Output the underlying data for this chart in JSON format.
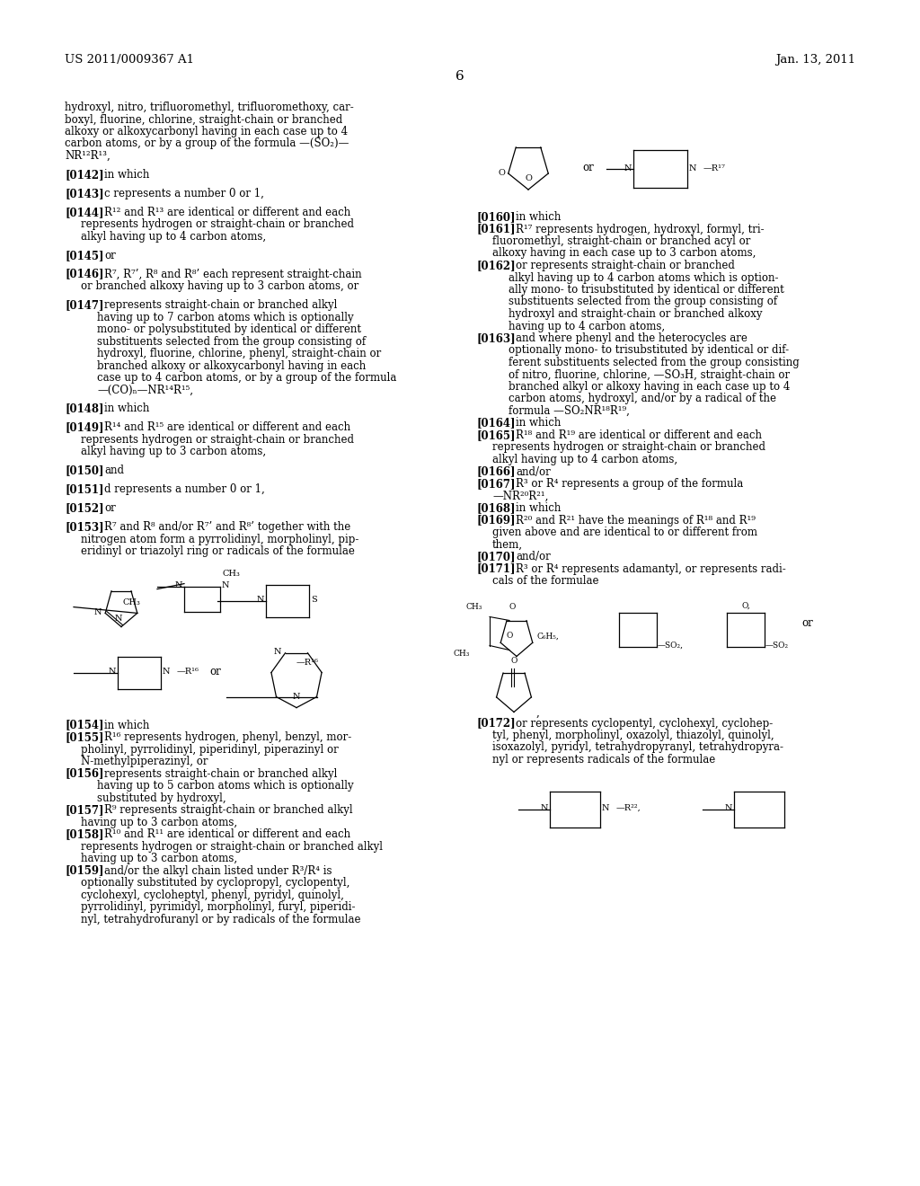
{
  "background": "#ffffff",
  "text_color": "#000000",
  "header_left": "US 2011/0009367 A1",
  "header_right": "Jan. 13, 2011",
  "page_number": "6"
}
